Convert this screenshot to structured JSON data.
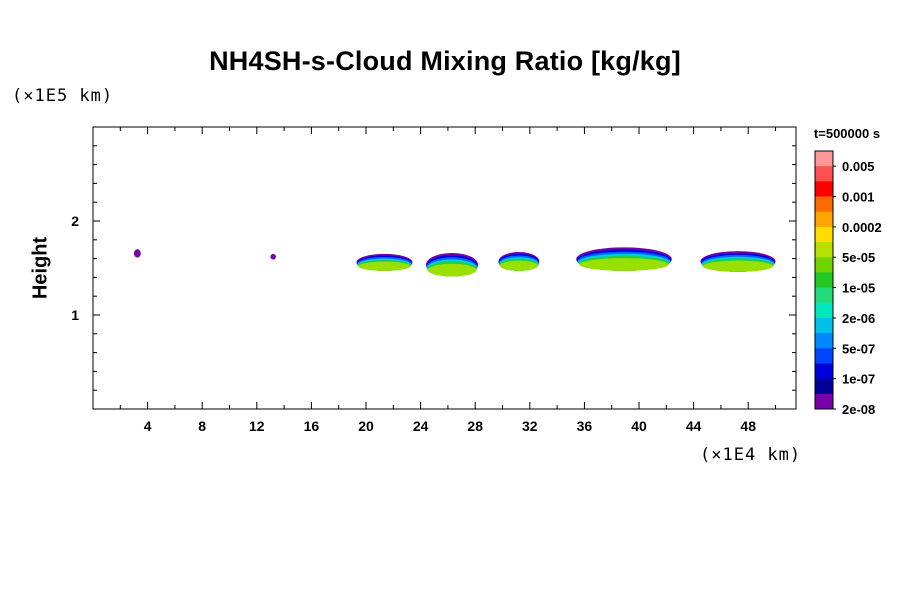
{
  "chart_data": {
    "type": "heatmap",
    "title": "NH4SH-s-Cloud Mixing Ratio [kg/kg]",
    "ylabel": "Height",
    "xlabel": "",
    "x_unit_label": "(×1E4 km)",
    "y_unit_label": "(×1E5 km)",
    "xlim": [
      0,
      51.5
    ],
    "ylim": [
      0,
      3
    ],
    "x_ticks": [
      "4",
      "8",
      "12",
      "16",
      "20",
      "24",
      "28",
      "32",
      "36",
      "40",
      "44",
      "48"
    ],
    "x_tick_values": [
      4,
      8,
      12,
      16,
      20,
      24,
      28,
      32,
      36,
      40,
      44,
      48
    ],
    "y_ticks": [
      "1",
      "2"
    ],
    "y_tick_values": [
      1,
      2
    ],
    "time_label": "t=500000 s",
    "colorbar": {
      "colors": [
        "#ff9999",
        "#ff5050",
        "#ff0000",
        "#ff6a00",
        "#ffa500",
        "#ffdd00",
        "#b6e000",
        "#6fd400",
        "#22c822",
        "#22dd77",
        "#00e6c0",
        "#00c0e8",
        "#0088ff",
        "#0044ff",
        "#0000dd",
        "#000099",
        "#7700aa"
      ],
      "labels": [
        "0.005",
        "0.001",
        "0.0002",
        "5e-05",
        "1e-05",
        "2e-06",
        "5e-07",
        "1e-07",
        "2e-08"
      ]
    },
    "cloud_regions": [
      {
        "x_range": [
          3.0,
          3.5
        ],
        "y_range": [
          1.61,
          1.7
        ],
        "max_level": "2e-08"
      },
      {
        "x_range": [
          13.0,
          13.4
        ],
        "y_range": [
          1.59,
          1.65
        ],
        "max_level": "2e-08"
      },
      {
        "x_range": [
          19.3,
          23.4
        ],
        "y_range": [
          1.47,
          1.65
        ],
        "max_level": "5e-05"
      },
      {
        "x_range": [
          24.4,
          28.2
        ],
        "y_range": [
          1.41,
          1.66
        ],
        "max_level": "5e-05"
      },
      {
        "x_range": [
          29.7,
          32.7
        ],
        "y_range": [
          1.47,
          1.67
        ],
        "max_level": "5e-05"
      },
      {
        "x_range": [
          35.4,
          42.4
        ],
        "y_range": [
          1.47,
          1.72
        ],
        "max_level": "5e-05"
      },
      {
        "x_range": [
          44.5,
          50.0
        ],
        "y_range": [
          1.46,
          1.68
        ],
        "max_level": "5e-05"
      }
    ]
  }
}
